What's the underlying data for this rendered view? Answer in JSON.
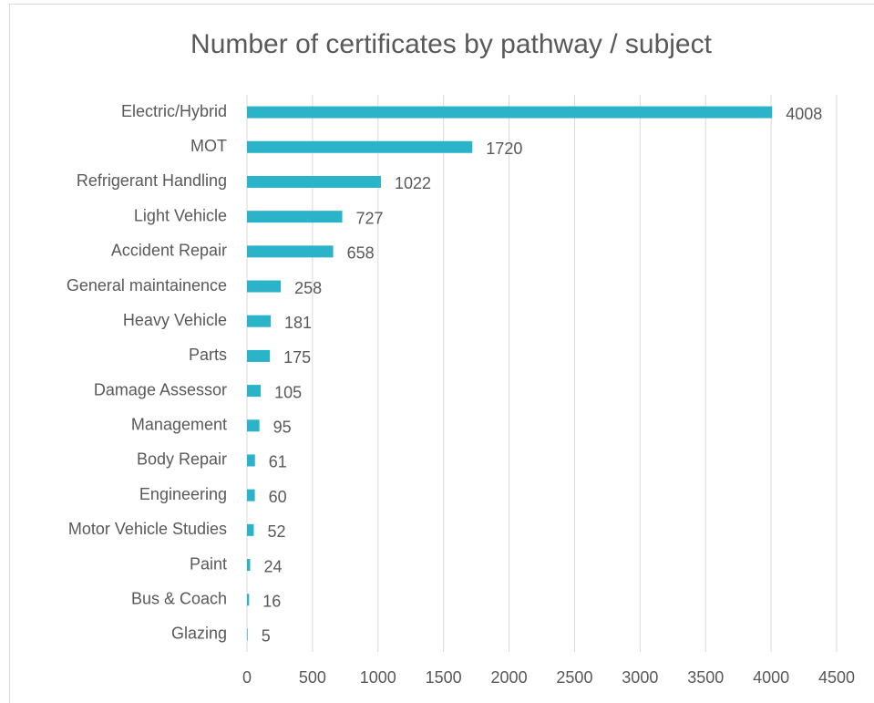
{
  "chart_data": {
    "type": "bar",
    "orientation": "horizontal",
    "title": "Number of certificates by pathway / subject",
    "categories": [
      "Electric/Hybrid",
      "MOT",
      "Refrigerant Handling",
      "Light Vehicle",
      "Accident Repair",
      "General maintainence",
      "Heavy Vehicle",
      "Parts",
      "Damage Assessor",
      "Management",
      "Body Repair",
      "Engineering",
      "Motor Vehicle Studies",
      "Paint",
      "Bus & Coach",
      "Glazing"
    ],
    "values": [
      4008,
      1720,
      1022,
      727,
      658,
      258,
      181,
      175,
      105,
      95,
      61,
      60,
      52,
      24,
      16,
      5
    ],
    "color": "#2ab3c9",
    "xlim": [
      0,
      4500
    ],
    "xticks": [
      0,
      500,
      1000,
      1500,
      2000,
      2500,
      3000,
      3500,
      4000,
      4500
    ],
    "grid": true
  }
}
